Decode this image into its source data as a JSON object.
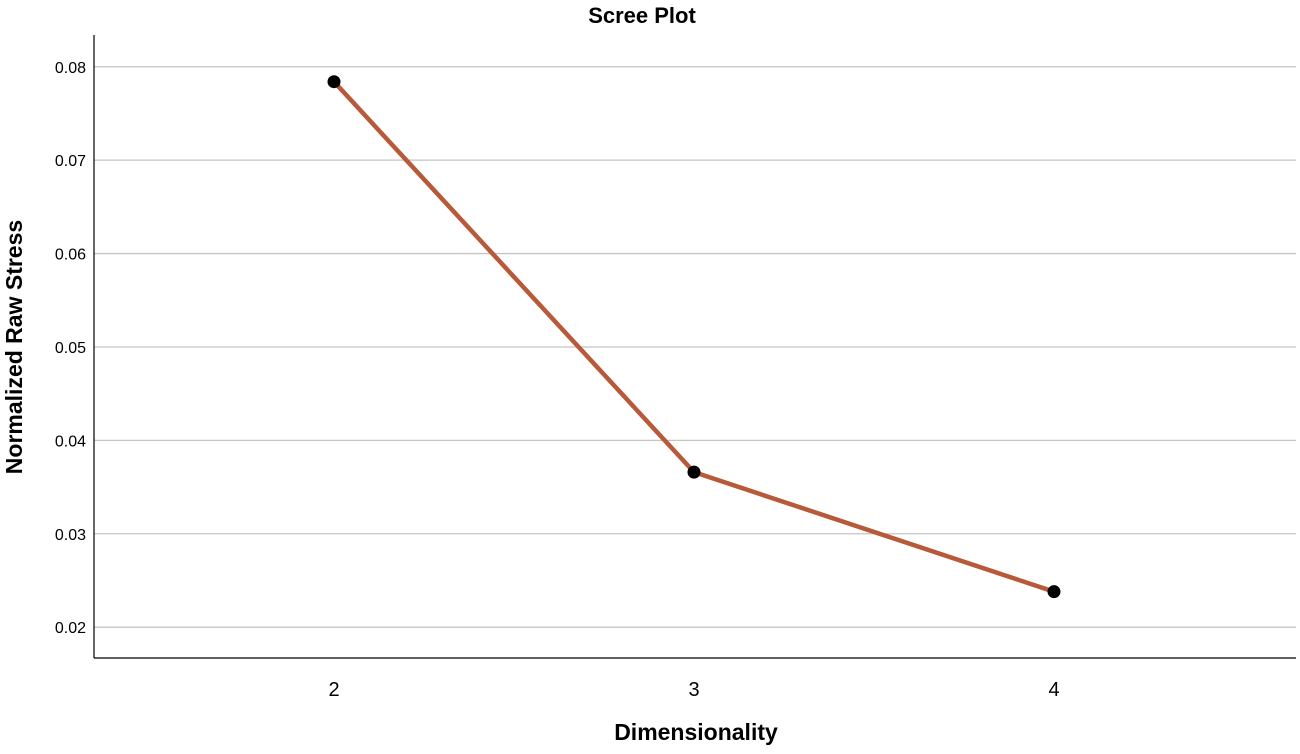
{
  "chart_data": {
    "type": "line",
    "title": "Scree Plot",
    "xlabel": "Dimensionality",
    "ylabel": "Normalized Raw Stress",
    "x": [
      2,
      3,
      4
    ],
    "x_tick_labels": [
      "2",
      "3",
      "4"
    ],
    "y_ticks": [
      0.02,
      0.03,
      0.04,
      0.05,
      0.06,
      0.07,
      0.08
    ],
    "y_tick_labels": [
      "0.02",
      "0.03",
      "0.04",
      "0.05",
      "0.06",
      "0.07",
      "0.08"
    ],
    "ylim": [
      0.0167,
      0.0834
    ],
    "grid": "horizontal",
    "series": [
      {
        "values": [
          0.0784,
          0.0366,
          0.0238
        ],
        "line_color": "#b85a3a",
        "marker_color": "#000000"
      }
    ]
  }
}
